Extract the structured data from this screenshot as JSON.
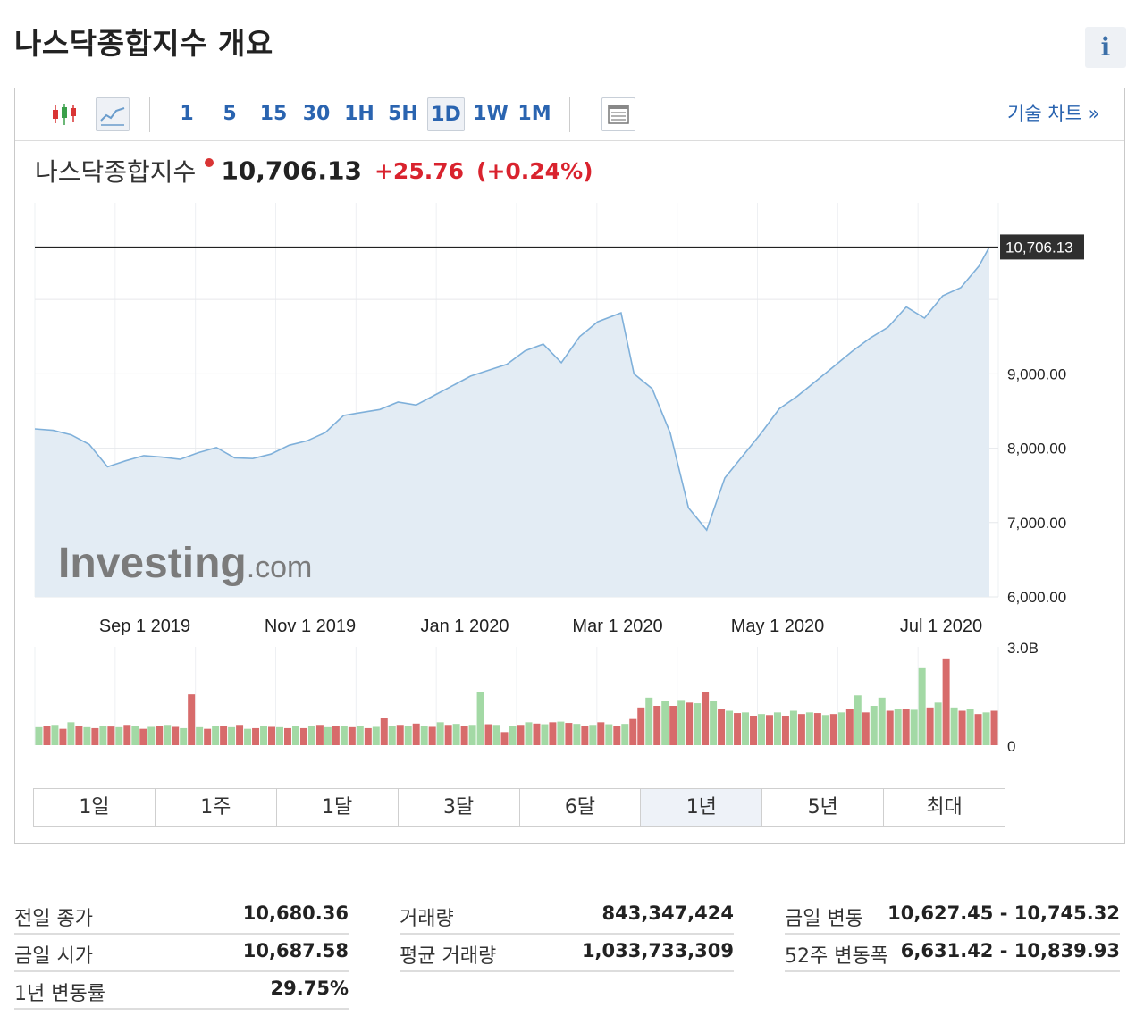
{
  "header": {
    "title": "나스닥종합지수 개요",
    "info_icon": "i"
  },
  "toolbar": {
    "timeframes": [
      "1",
      "5",
      "15",
      "30",
      "1H",
      "5H",
      "1D",
      "1W",
      "1M"
    ],
    "active_timeframe": "1D",
    "tech_chart_label": "기술 차트 »"
  },
  "quote": {
    "name": "나스닥종합지수",
    "price": "10,706.13",
    "change": "+25.76",
    "change_pct": "(+0.24%)",
    "status_color": "#d93434"
  },
  "chart_data": {
    "type": "area",
    "price_axis": {
      "ticks": [
        "9,000.00",
        "8,000.00",
        "7,000.00",
        "6,000.00"
      ],
      "tick_values": [
        9000,
        8000,
        7000,
        6000
      ],
      "ylim": [
        6000,
        11300
      ]
    },
    "x_tick_labels": [
      "Sep 1 2019",
      "Nov 1 2019",
      "Jan 1 2020",
      "Mar 1 2020",
      "May 1 2020",
      "Jul 1 2020"
    ],
    "last_price_label": "10,706.13",
    "last_price": 10706.13,
    "watermark": {
      "brand": "Investing",
      "suffix": ".com"
    },
    "line_color": "#7fb0da",
    "fill_color": "#e3ecf4",
    "price_series": [
      [
        "2019-07-08",
        8260
      ],
      [
        "2019-07-15",
        8240
      ],
      [
        "2019-07-22",
        8180
      ],
      [
        "2019-07-29",
        8050
      ],
      [
        "2019-08-05",
        7750
      ],
      [
        "2019-08-12",
        7830
      ],
      [
        "2019-08-19",
        7900
      ],
      [
        "2019-08-26",
        7880
      ],
      [
        "2019-09-02",
        7850
      ],
      [
        "2019-09-09",
        7940
      ],
      [
        "2019-09-16",
        8010
      ],
      [
        "2019-09-23",
        7870
      ],
      [
        "2019-09-30",
        7860
      ],
      [
        "2019-10-07",
        7920
      ],
      [
        "2019-10-14",
        8040
      ],
      [
        "2019-10-21",
        8100
      ],
      [
        "2019-10-28",
        8210
      ],
      [
        "2019-11-04",
        8440
      ],
      [
        "2019-11-11",
        8480
      ],
      [
        "2019-11-18",
        8520
      ],
      [
        "2019-11-25",
        8620
      ],
      [
        "2019-12-02",
        8580
      ],
      [
        "2019-12-09",
        8710
      ],
      [
        "2019-12-16",
        8840
      ],
      [
        "2019-12-23",
        8970
      ],
      [
        "2019-12-30",
        9050
      ],
      [
        "2020-01-06",
        9130
      ],
      [
        "2020-01-13",
        9310
      ],
      [
        "2020-01-20",
        9400
      ],
      [
        "2020-01-27",
        9150
      ],
      [
        "2020-02-03",
        9500
      ],
      [
        "2020-02-10",
        9700
      ],
      [
        "2020-02-19",
        9820
      ],
      [
        "2020-02-24",
        9000
      ],
      [
        "2020-03-02",
        8800
      ],
      [
        "2020-03-09",
        8200
      ],
      [
        "2020-03-16",
        7200
      ],
      [
        "2020-03-23",
        6900
      ],
      [
        "2020-03-30",
        7600
      ],
      [
        "2020-04-06",
        7900
      ],
      [
        "2020-04-13",
        8200
      ],
      [
        "2020-04-20",
        8530
      ],
      [
        "2020-04-27",
        8700
      ],
      [
        "2020-05-04",
        8900
      ],
      [
        "2020-05-11",
        9100
      ],
      [
        "2020-05-18",
        9300
      ],
      [
        "2020-05-25",
        9480
      ],
      [
        "2020-06-01",
        9630
      ],
      [
        "2020-06-08",
        9900
      ],
      [
        "2020-06-15",
        9750
      ],
      [
        "2020-06-22",
        10050
      ],
      [
        "2020-06-29",
        10160
      ],
      [
        "2020-07-06",
        10450
      ],
      [
        "2020-07-10",
        10706.13
      ]
    ],
    "volume_axis": {
      "ticks": [
        "3.0B",
        "0"
      ],
      "max": 3000000000
    },
    "volume_colors": {
      "up": "#a3d9a5",
      "down": "#d76b6b"
    },
    "volume_series": [
      [
        0.55,
        1
      ],
      [
        0.58,
        0
      ],
      [
        0.62,
        1
      ],
      [
        0.5,
        0
      ],
      [
        0.7,
        1
      ],
      [
        0.6,
        0
      ],
      [
        0.55,
        1
      ],
      [
        0.52,
        0
      ],
      [
        0.6,
        1
      ],
      [
        0.57,
        0
      ],
      [
        0.55,
        1
      ],
      [
        0.62,
        0
      ],
      [
        0.58,
        1
      ],
      [
        0.5,
        0
      ],
      [
        0.56,
        1
      ],
      [
        0.6,
        0
      ],
      [
        0.62,
        1
      ],
      [
        0.56,
        0
      ],
      [
        0.52,
        1
      ],
      [
        1.55,
        0
      ],
      [
        0.55,
        1
      ],
      [
        0.5,
        0
      ],
      [
        0.6,
        1
      ],
      [
        0.58,
        0
      ],
      [
        0.55,
        1
      ],
      [
        0.62,
        0
      ],
      [
        0.5,
        1
      ],
      [
        0.52,
        0
      ],
      [
        0.6,
        1
      ],
      [
        0.56,
        0
      ],
      [
        0.55,
        1
      ],
      [
        0.52,
        0
      ],
      [
        0.6,
        1
      ],
      [
        0.52,
        0
      ],
      [
        0.58,
        1
      ],
      [
        0.62,
        0
      ],
      [
        0.55,
        1
      ],
      [
        0.58,
        0
      ],
      [
        0.6,
        1
      ],
      [
        0.55,
        0
      ],
      [
        0.58,
        1
      ],
      [
        0.52,
        0
      ],
      [
        0.56,
        1
      ],
      [
        0.82,
        0
      ],
      [
        0.6,
        1
      ],
      [
        0.62,
        0
      ],
      [
        0.58,
        1
      ],
      [
        0.66,
        0
      ],
      [
        0.6,
        1
      ],
      [
        0.56,
        0
      ],
      [
        0.7,
        1
      ],
      [
        0.62,
        0
      ],
      [
        0.65,
        1
      ],
      [
        0.6,
        0
      ],
      [
        0.62,
        1
      ],
      [
        1.62,
        1
      ],
      [
        0.64,
        0
      ],
      [
        0.62,
        1
      ],
      [
        0.4,
        0
      ],
      [
        0.6,
        1
      ],
      [
        0.62,
        0
      ],
      [
        0.7,
        1
      ],
      [
        0.66,
        0
      ],
      [
        0.64,
        1
      ],
      [
        0.7,
        0
      ],
      [
        0.72,
        1
      ],
      [
        0.68,
        0
      ],
      [
        0.65,
        1
      ],
      [
        0.6,
        0
      ],
      [
        0.62,
        1
      ],
      [
        0.7,
        0
      ],
      [
        0.64,
        1
      ],
      [
        0.6,
        0
      ],
      [
        0.65,
        1
      ],
      [
        0.8,
        0
      ],
      [
        1.15,
        0
      ],
      [
        1.45,
        1
      ],
      [
        1.2,
        0
      ],
      [
        1.35,
        1
      ],
      [
        1.2,
        0
      ],
      [
        1.38,
        1
      ],
      [
        1.3,
        0
      ],
      [
        1.28,
        1
      ],
      [
        1.62,
        0
      ],
      [
        1.35,
        1
      ],
      [
        1.1,
        0
      ],
      [
        1.05,
        1
      ],
      [
        0.98,
        0
      ],
      [
        1.0,
        1
      ],
      [
        0.9,
        0
      ],
      [
        0.95,
        1
      ],
      [
        0.92,
        0
      ],
      [
        1.0,
        1
      ],
      [
        0.9,
        0
      ],
      [
        1.05,
        1
      ],
      [
        0.95,
        0
      ],
      [
        1.0,
        1
      ],
      [
        0.98,
        0
      ],
      [
        0.92,
        1
      ],
      [
        0.95,
        0
      ],
      [
        1.0,
        1
      ],
      [
        1.1,
        0
      ],
      [
        1.52,
        1
      ],
      [
        1.0,
        0
      ],
      [
        1.2,
        1
      ],
      [
        1.45,
        1
      ],
      [
        1.05,
        0
      ],
      [
        1.1,
        1
      ],
      [
        1.1,
        0
      ],
      [
        1.08,
        1
      ],
      [
        2.35,
        1
      ],
      [
        1.15,
        0
      ],
      [
        1.3,
        1
      ],
      [
        2.65,
        0
      ],
      [
        1.15,
        1
      ],
      [
        1.05,
        0
      ],
      [
        1.1,
        1
      ],
      [
        0.95,
        0
      ],
      [
        1.0,
        1
      ],
      [
        1.05,
        0
      ]
    ]
  },
  "range_tabs": [
    "1일",
    "1주",
    "1달",
    "3달",
    "6달",
    "1년",
    "5년",
    "최대"
  ],
  "active_range": "1년",
  "stats": {
    "col1": [
      {
        "label": "전일 종가",
        "value": "10,680.36"
      },
      {
        "label": "금일 시가",
        "value": "10,687.58"
      },
      {
        "label": "1년 변동률",
        "value": "29.75%"
      }
    ],
    "col2": [
      {
        "label": "거래량",
        "value": "843,347,424"
      },
      {
        "label": "평균 거래량",
        "value": "1,033,733,309"
      }
    ],
    "col3": [
      {
        "label": "금일 변동",
        "value": "10,627.45 - 10,745.32"
      },
      {
        "label": "52주 변동폭",
        "value": "6,631.42 - 10,839.93"
      }
    ]
  }
}
